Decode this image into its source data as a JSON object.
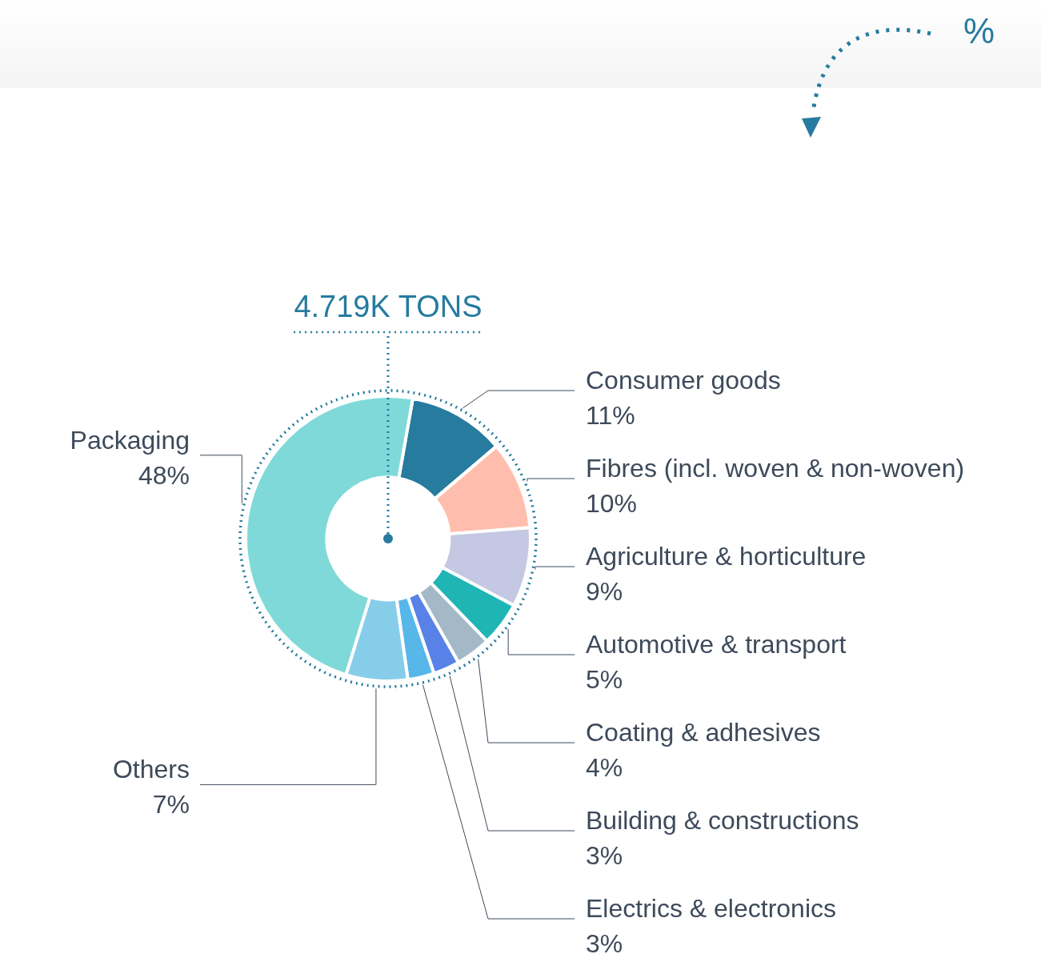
{
  "chart_data": {
    "type": "donut",
    "title": "%",
    "annotations": [
      "4.719K TONS"
    ],
    "categories": [
      "Consumer goods",
      "Fibres (incl. woven & non-woven)",
      "Agriculture & horticulture",
      "Automotive & transport",
      "Coating & adhesives",
      "Building & constructions",
      "Electrics & electronics",
      "Others",
      "Packaging"
    ],
    "values": [
      11,
      10,
      9,
      5,
      4,
      3,
      3,
      7,
      48
    ],
    "colors": [
      "#267b9f",
      "#ffbead",
      "#c4c8e2",
      "#20b5b5",
      "#a3b9c7",
      "#5882e8",
      "#56b7e8",
      "#86cdea",
      "#80d9d9"
    ],
    "value_labels": [
      "11%",
      "10%",
      "9%",
      "5%",
      "4%",
      "3%",
      "3%",
      "7%",
      "48%"
    ],
    "legend": false
  }
}
